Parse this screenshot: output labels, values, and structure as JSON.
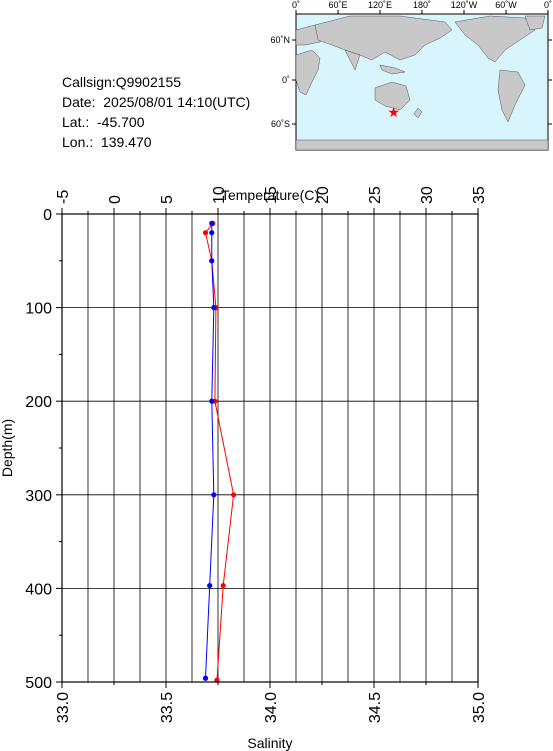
{
  "info": {
    "callsign": "Callsign:Q9902155",
    "date": "Date:  2025/08/01 14:10(UTC)",
    "lat": "Lat.:  -45.700",
    "lon": "Lon.:  139.470"
  },
  "map": {
    "top_ticks": [
      "0˚",
      "60˚E",
      "120˚E",
      "180˚",
      "120˚W",
      "60˚W",
      "0˚"
    ],
    "lat_labels": [
      "60˚N",
      "0˚",
      "60˚S"
    ],
    "marker": {
      "lat": -45.7,
      "lon": 139.47
    },
    "colors": {
      "ocean": "#d8f4fc",
      "land": "#c8c8c8",
      "marker": "#ff0000"
    }
  },
  "chart_data": {
    "type": "line",
    "top_axis": {
      "label": "Temperature(C)",
      "range": [
        -5,
        35
      ],
      "ticks": [
        "-5",
        "0",
        "5",
        "10",
        "15",
        "20",
        "25",
        "30",
        "35"
      ]
    },
    "bottom_axis": {
      "label": "Salinity",
      "range": [
        33.0,
        35.0
      ],
      "ticks": [
        "33.0",
        "33.5",
        "34.0",
        "34.5",
        "35.0"
      ]
    },
    "y_axis": {
      "label": "Depth(m)",
      "range": [
        0,
        500
      ],
      "inverted": true,
      "ticks": [
        "0",
        "100",
        "200",
        "300",
        "400",
        "500"
      ]
    },
    "grid": true,
    "series": [
      {
        "color": "#ff0000",
        "axis": "temperature",
        "points": [
          [
            9.5,
            10
          ],
          [
            8.8,
            20
          ],
          [
            9.4,
            50
          ],
          [
            9.8,
            100
          ],
          [
            9.7,
            200
          ],
          [
            11.5,
            300
          ],
          [
            10.5,
            397
          ],
          [
            9.9,
            498
          ]
        ]
      },
      {
        "color": "#0000ff",
        "axis": "salinity",
        "points": [
          [
            33.72,
            10
          ],
          [
            33.72,
            20
          ],
          [
            33.72,
            50
          ],
          [
            33.73,
            100
          ],
          [
            33.72,
            200
          ],
          [
            33.73,
            300
          ],
          [
            33.71,
            397
          ],
          [
            33.69,
            496
          ]
        ]
      }
    ]
  }
}
